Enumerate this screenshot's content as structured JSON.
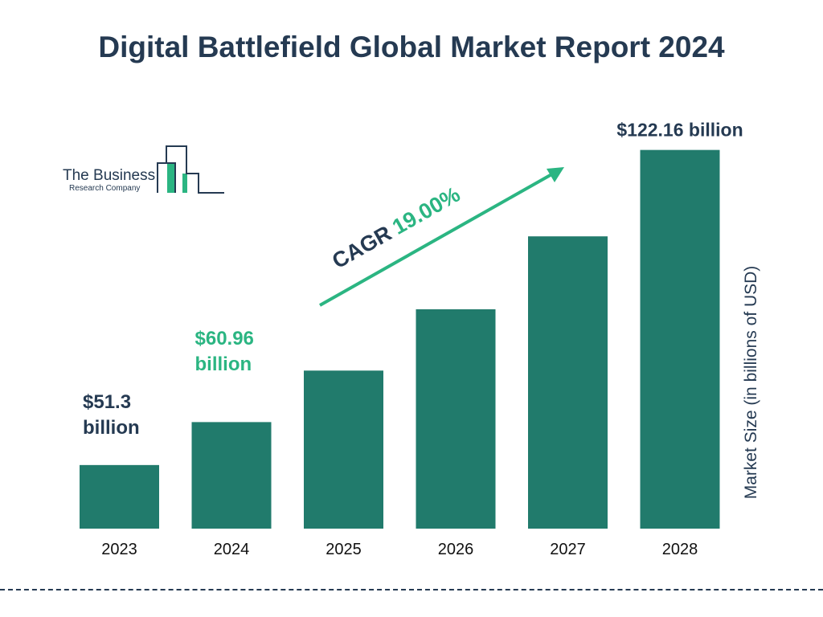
{
  "title": "Digital Battlefield Global Market Report 2024",
  "logo": {
    "line1": "The Business",
    "line2": "Research Company"
  },
  "colors": {
    "bar": "#217b6c",
    "accent": "#2bb582",
    "text": "#253a52"
  },
  "chart_data": {
    "type": "bar",
    "categories": [
      "2023",
      "2024",
      "2025",
      "2026",
      "2027",
      "2028"
    ],
    "values": [
      51.3,
      60.96,
      72.54,
      86.33,
      102.73,
      122.16
    ],
    "data_labels": [
      "$51.3 billion",
      "$60.96 billion",
      "",
      "",
      "",
      "$122.16 billion"
    ],
    "ylabel": "Market Size (in billions of USD)",
    "ylim": [
      37,
      123
    ],
    "grid": false,
    "annotation": {
      "label": "CAGR",
      "value": "19.00%"
    }
  }
}
